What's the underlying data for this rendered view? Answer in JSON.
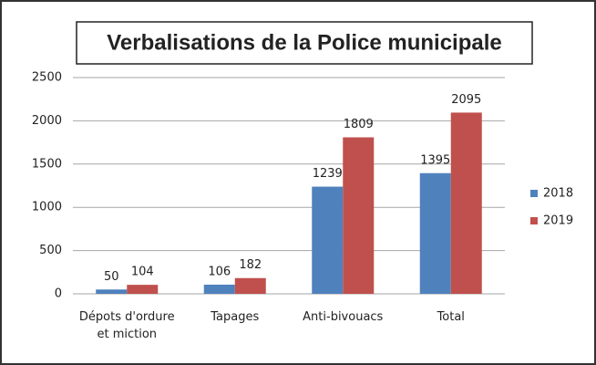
{
  "chart_data": {
    "type": "bar",
    "title": "Verbalisations de la Police municipale",
    "categories": [
      "Dépots d'ordure et miction",
      "Tapages",
      "Anti-bivouacs",
      "Total"
    ],
    "series": [
      {
        "name": "2018",
        "color": "#4f81bd",
        "values": [
          50,
          106,
          1239,
          1395
        ]
      },
      {
        "name": "2019",
        "color": "#c0504d",
        "values": [
          104,
          182,
          1809,
          2095
        ]
      }
    ],
    "ylim": [
      0,
      2500
    ],
    "yticks": [
      0,
      500,
      1000,
      1500,
      2000,
      2500
    ],
    "grid": true,
    "legend": "right"
  }
}
